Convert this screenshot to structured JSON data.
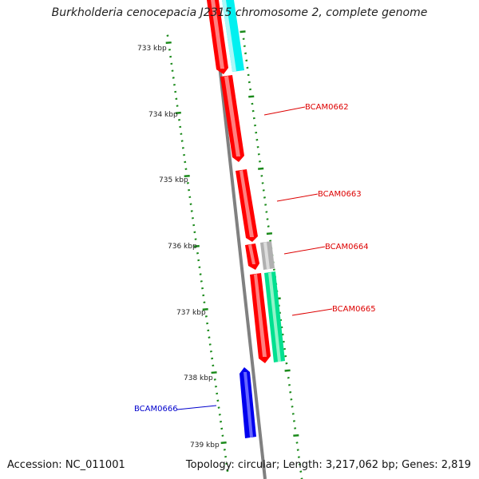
{
  "title": "Burkholderia cenocepacia J2315 chromosome 2, complete genome",
  "footer": {
    "accession": "Accession: NC_011001",
    "summary": "Topology: circular; Length: 3,217,062 bp; Genes: 2,819"
  },
  "scale_labels": [
    "733 kbp",
    "734 kbp",
    "735 kbp",
    "736 kbp",
    "737 kbp",
    "738 kbp",
    "739 kbp"
  ],
  "genes": [
    {
      "name": "BCAM0662",
      "color": "#dd0000"
    },
    {
      "name": "BCAM0663",
      "color": "#dd0000"
    },
    {
      "name": "BCAM0664",
      "color": "#dd0000"
    },
    {
      "name": "BCAM0665",
      "color": "#dd0000"
    },
    {
      "name": "BCAM0666",
      "color": "#0000cc"
    }
  ],
  "colors": {
    "backbone": "#808080",
    "tick": "#1a8a1a",
    "red_gene": "#ff0000",
    "cyan_gene": "#00f0f0",
    "gray_gene": "#b0b0b0",
    "teal_gene": "#00e090",
    "blue_gene": "#0000ee"
  }
}
